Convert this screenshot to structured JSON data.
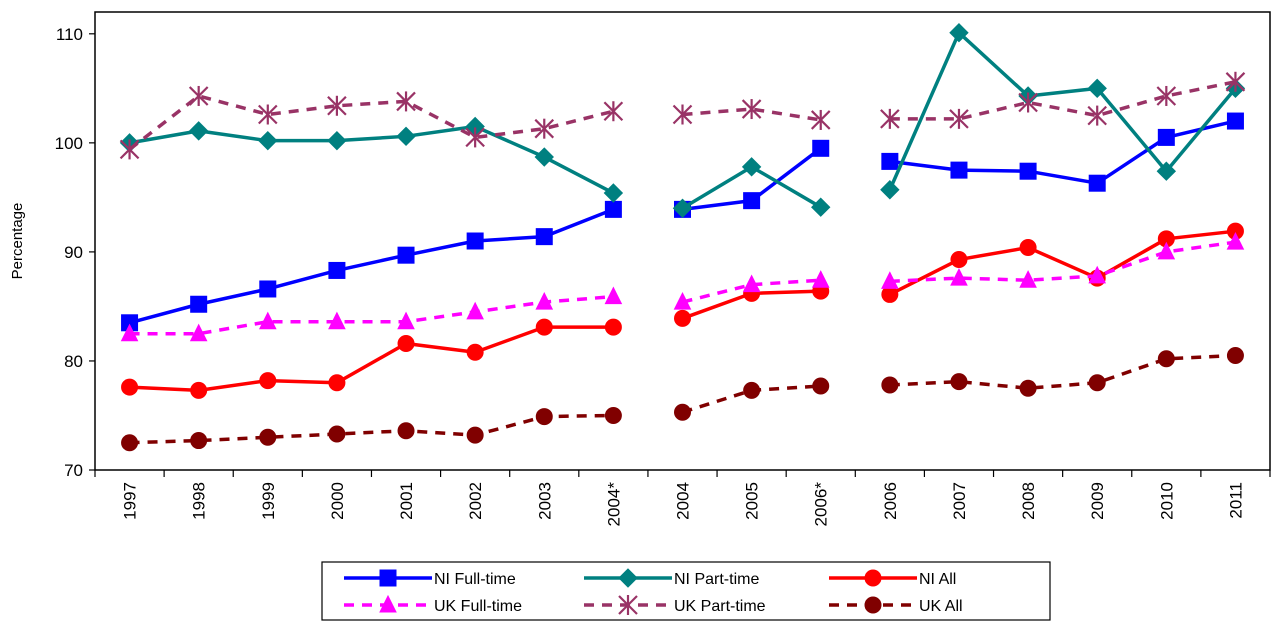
{
  "chart_data": {
    "type": "line",
    "title": "",
    "xlabel": "",
    "ylabel": "Percentage",
    "ylim": [
      70,
      112
    ],
    "yticks": [
      70,
      80,
      90,
      100,
      110
    ],
    "categories": [
      "1997",
      "1998",
      "1999",
      "2000",
      "2001",
      "2002",
      "2003",
      "2004*",
      "2004",
      "2005",
      "2006*",
      "2006",
      "2007",
      "2008",
      "2009",
      "2010",
      "2011"
    ],
    "series_breaks_after": [
      "2004*",
      "2006*"
    ],
    "grid": false,
    "legend": "bottom",
    "series": [
      {
        "name": "NI Full-time",
        "color": "#0000ff",
        "dash": "solid",
        "marker": "square",
        "values": [
          83.5,
          85.2,
          86.6,
          88.3,
          89.7,
          91.0,
          91.4,
          93.9,
          93.9,
          94.7,
          99.5,
          98.3,
          97.5,
          97.4,
          96.3,
          100.5,
          102.0
        ]
      },
      {
        "name": "NI Part-time",
        "color": "#008080",
        "dash": "solid",
        "marker": "diamond",
        "values": [
          100.0,
          101.1,
          100.2,
          100.2,
          100.6,
          101.5,
          98.7,
          95.4,
          94.0,
          97.8,
          94.1,
          95.7,
          110.1,
          104.3,
          105.0,
          97.4,
          105.0
        ]
      },
      {
        "name": "NI All",
        "color": "#ff0000",
        "dash": "solid",
        "marker": "circle",
        "values": [
          77.6,
          77.3,
          78.2,
          78.0,
          81.6,
          80.8,
          83.1,
          83.1,
          83.9,
          86.2,
          86.4,
          86.1,
          89.3,
          90.4,
          87.6,
          91.2,
          91.9
        ]
      },
      {
        "name": "UK Full-time",
        "color": "#ff00ff",
        "dash": "dashed",
        "marker": "triangle",
        "values": [
          82.5,
          82.5,
          83.6,
          83.6,
          83.6,
          84.5,
          85.4,
          85.9,
          85.4,
          87.0,
          87.4,
          87.3,
          87.6,
          87.4,
          87.8,
          90.0,
          90.9
        ]
      },
      {
        "name": "UK Part-time",
        "color": "#993366",
        "dash": "dashed",
        "marker": "star",
        "values": [
          99.4,
          104.3,
          102.6,
          103.4,
          103.8,
          100.5,
          101.3,
          102.9,
          102.6,
          103.1,
          102.1,
          102.2,
          102.2,
          103.7,
          102.5,
          104.3,
          105.6
        ]
      },
      {
        "name": "UK All",
        "color": "#800000",
        "dash": "dashed",
        "marker": "circle",
        "values": [
          72.5,
          72.7,
          73.0,
          73.3,
          73.6,
          73.2,
          74.9,
          75.0,
          75.3,
          77.3,
          77.7,
          77.8,
          78.1,
          77.5,
          78.0,
          80.2,
          80.5
        ]
      }
    ]
  }
}
